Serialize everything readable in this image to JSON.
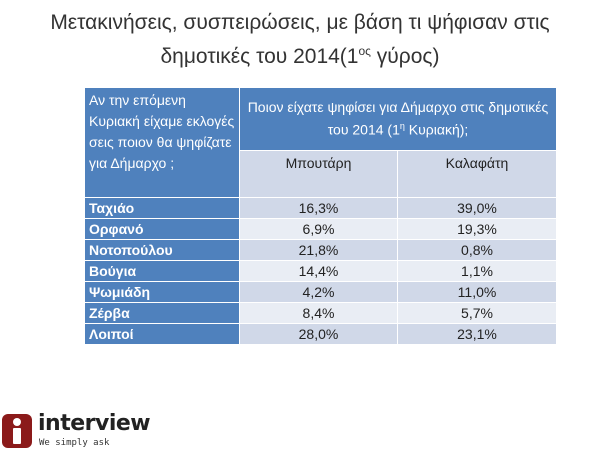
{
  "title": {
    "line1": "Μετακινήσεις, συσπειρώσεις, με βάση τι ψήφισαν στις",
    "line2_before": "δημοτικές του 2014(1",
    "line2_sup": "ος",
    "line2_after": " γύρος)"
  },
  "chart_data": {
    "type": "table",
    "row_header": "Αν την επόμενη Κυριακή είχαμε εκλογές σεις ποιον θα ψηφίζατε για Δήμαρχο ;",
    "column_group": {
      "before": "Ποιον είχατε ψηφίσει για Δήμαρχο στις δημοτικές του 2014 (1",
      "sup": "η",
      "after": " Κυριακή);"
    },
    "columns": [
      "Μπουτάρη",
      "Καλαφάτη"
    ],
    "rows": [
      {
        "label": "Ταχιάο",
        "values": [
          "16,3%",
          "39,0%"
        ]
      },
      {
        "label": "Ορφανό",
        "values": [
          "6,9%",
          "19,3%"
        ]
      },
      {
        "label": "Νοτοπούλου",
        "values": [
          "21,8%",
          "0,8%"
        ]
      },
      {
        "label": "Βούγια",
        "values": [
          "14,4%",
          "1,1%"
        ]
      },
      {
        "label": "Ψωμιάδη",
        "values": [
          "4,2%",
          "11,0%"
        ]
      },
      {
        "label": "Ζέρβα",
        "values": [
          "8,4%",
          "5,7%"
        ]
      },
      {
        "label": "Λοιποί",
        "values": [
          "28,0%",
          "23,1%"
        ]
      }
    ]
  },
  "logo": {
    "word": "interview",
    "tagline": "We simply ask"
  },
  "colors": {
    "header_blue": "#4f81bd",
    "row_light": "#d0d8e8",
    "row_lighter": "#e9edf4",
    "logo_red": "#8b1a1a"
  }
}
